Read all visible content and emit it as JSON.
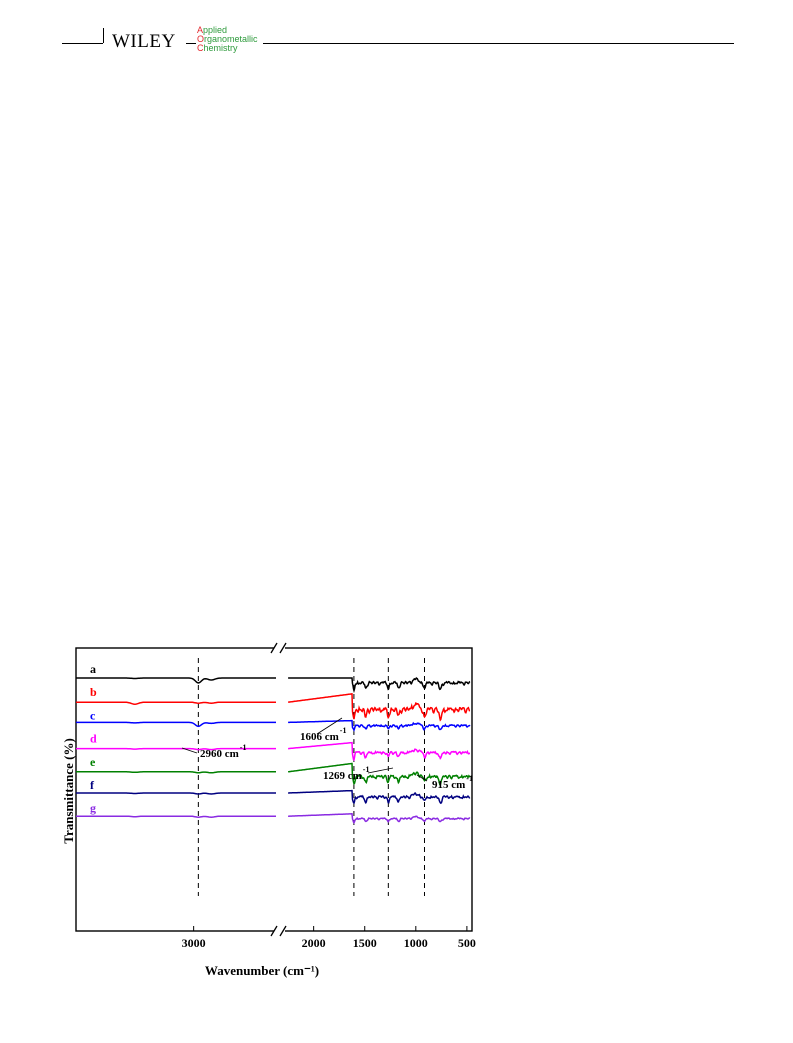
{
  "header": {
    "publisher": "WILEY",
    "journal_lines": [
      {
        "initial": "A",
        "rest": "pplied"
      },
      {
        "initial": "O",
        "rest": "rganometallic"
      },
      {
        "initial": "C",
        "rest": "hemistry"
      }
    ]
  },
  "chart_data": {
    "type": "line",
    "xlabel": "Wavenumber (cm⁻¹)",
    "ylabel": "Transmittance (%)",
    "x_axis": "reversed, broken",
    "x_segments": [
      {
        "range": [
          4000,
          2300
        ],
        "ticks": [
          3000
        ]
      },
      {
        "range": [
          2300,
          450
        ],
        "ticks": [
          2000,
          1500,
          1000,
          500
        ]
      }
    ],
    "y_ticks": "none",
    "grid": false,
    "series": [
      {
        "name": "a",
        "color": "#000000",
        "baseline": 0.0
      },
      {
        "name": "b",
        "color": "#ff0000",
        "baseline": 1.0
      },
      {
        "name": "c",
        "color": "#0000ff",
        "baseline": 2.0
      },
      {
        "name": "d",
        "color": "#ff00ff",
        "baseline": 3.0
      },
      {
        "name": "e",
        "color": "#008000",
        "baseline": 4.0
      },
      {
        "name": "f",
        "color": "#000080",
        "baseline": 5.0
      },
      {
        "name": "g",
        "color": "#8a2be2",
        "baseline": 6.0
      }
    ],
    "reference_lines": [
      2960,
      1606,
      1269,
      915
    ],
    "annotations": [
      {
        "text": "2960 cm",
        "sup": "-1"
      },
      {
        "text": "1606 cm",
        "sup": "-1"
      },
      {
        "text": "1269 cm",
        "sup": "-1"
      },
      {
        "text": "915 cm",
        "sup": "-1"
      }
    ]
  }
}
